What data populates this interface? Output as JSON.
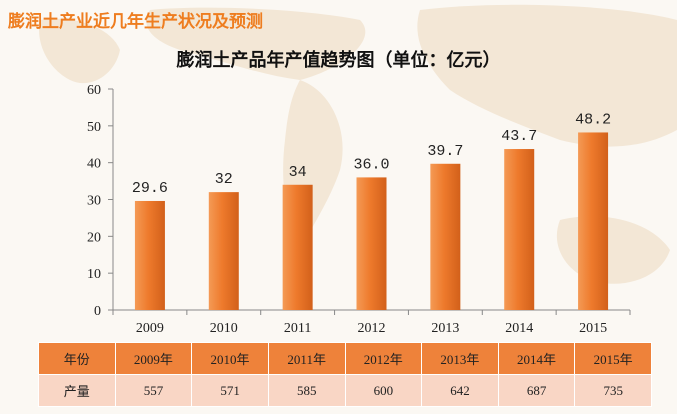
{
  "header": {
    "title": "膨润土产业近几年生产状况及预测"
  },
  "chart_data": {
    "type": "bar",
    "title": "膨润土产品年产值趋势图（单位：亿元）",
    "categories": [
      "2009",
      "2010",
      "2011",
      "2012",
      "2013",
      "2014",
      "2015"
    ],
    "values": [
      29.6,
      32,
      34,
      36.0,
      39.7,
      43.7,
      48.2
    ],
    "value_labels": [
      "29.6",
      "32",
      "34",
      "36.0",
      "39.7",
      "43.7",
      "48.2"
    ],
    "ylim": [
      0,
      60
    ],
    "yticks": [
      "0",
      "10",
      "20",
      "30",
      "40",
      "50",
      "60"
    ],
    "grid": false,
    "bar_color": "#ee7a2c"
  },
  "table": {
    "rows": [
      {
        "head": "年份",
        "cells": [
          "2009年",
          "2010年",
          "2011年",
          "2012年",
          "2013年",
          "2014年",
          "2015年"
        ]
      },
      {
        "head": "产量",
        "cells": [
          "557",
          "571",
          "585",
          "600",
          "642",
          "687",
          "735"
        ]
      }
    ]
  }
}
